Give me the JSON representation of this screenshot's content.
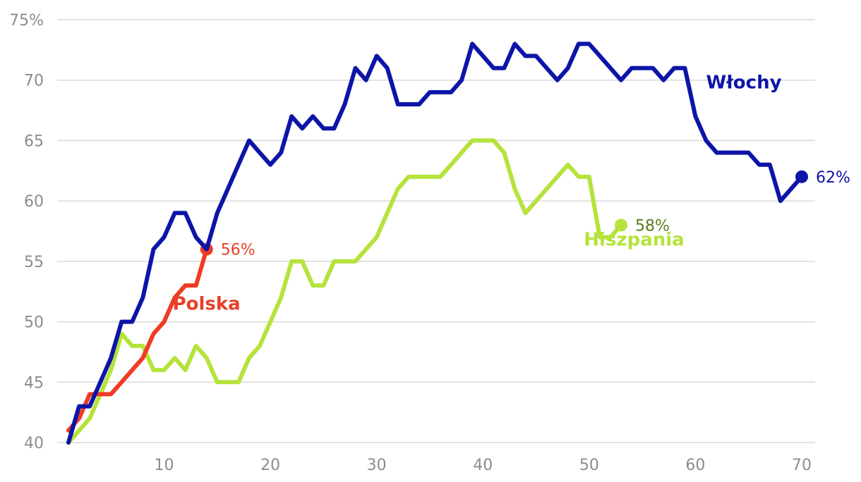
{
  "chart_data": {
    "type": "line",
    "title": "",
    "xlabel": "",
    "ylabel": "",
    "xlim": [
      0,
      72
    ],
    "ylim": [
      40,
      75
    ],
    "x_ticks": [
      {
        "value": 10,
        "label": "10"
      },
      {
        "value": 20,
        "label": "20"
      },
      {
        "value": 30,
        "label": "30"
      },
      {
        "value": 40,
        "label": "40"
      },
      {
        "value": 50,
        "label": "50"
      },
      {
        "value": 60,
        "label": "60"
      },
      {
        "value": 70,
        "label": "70"
      }
    ],
    "y_ticks": [
      {
        "value": 40,
        "label": "40"
      },
      {
        "value": 45,
        "label": "45"
      },
      {
        "value": 50,
        "label": "50"
      },
      {
        "value": 55,
        "label": "55"
      },
      {
        "value": 60,
        "label": "60"
      },
      {
        "value": 65,
        "label": "65"
      },
      {
        "value": 70,
        "label": "70"
      },
      {
        "value": 75,
        "label": "75%"
      }
    ],
    "grid": true,
    "series": [
      {
        "name": "Hiszpania",
        "color": "#b5e33b",
        "label_color": "#b5e33b",
        "end_label": "58%",
        "end_label_color": "#5a7a1a",
        "label_at": [
          49.5,
          56.3
        ],
        "x": [
          1,
          2,
          3,
          4,
          5,
          6,
          7,
          8,
          9,
          10,
          11,
          12,
          13,
          14,
          15,
          16,
          17,
          18,
          19,
          20,
          21,
          22,
          23,
          24,
          25,
          26,
          27,
          28,
          29,
          30,
          31,
          32,
          33,
          34,
          35,
          36,
          37,
          38,
          39,
          40,
          41,
          42,
          43,
          44,
          45,
          46,
          47,
          48,
          49,
          50,
          51,
          52,
          53
        ],
        "values": [
          40,
          41,
          42,
          44,
          46,
          49,
          48,
          48,
          46,
          46,
          47,
          46,
          48,
          47,
          45,
          45,
          45,
          47,
          48,
          50,
          52,
          55,
          55,
          53,
          53,
          55,
          55,
          55,
          56,
          57,
          59,
          61,
          62,
          62,
          62,
          62,
          63,
          64,
          65,
          65,
          65,
          64,
          61,
          59,
          60,
          61,
          62,
          63,
          62,
          62,
          57,
          57,
          58
        ]
      },
      {
        "name": "Polska",
        "color": "#ef3b24",
        "label_color": "#e8402a",
        "end_label": "56%",
        "end_label_color": "#e8402a",
        "label_at": [
          10.8,
          51.0
        ],
        "x": [
          1,
          2,
          3,
          4,
          5,
          6,
          7,
          8,
          9,
          10,
          11,
          12,
          13,
          14
        ],
        "values": [
          41,
          42,
          44,
          44,
          44,
          45,
          46,
          47,
          49,
          50,
          52,
          53,
          53,
          56
        ]
      },
      {
        "name": "Włochy",
        "color": "#0d15a8",
        "label_color": "#0d15a8",
        "end_label": "62%",
        "end_label_color": "#0d15a8",
        "label_at": [
          61.0,
          69.3
        ],
        "x": [
          1,
          2,
          3,
          4,
          5,
          6,
          7,
          8,
          9,
          10,
          11,
          12,
          13,
          14,
          15,
          16,
          17,
          18,
          19,
          20,
          21,
          22,
          23,
          24,
          25,
          26,
          27,
          28,
          29,
          30,
          31,
          32,
          33,
          34,
          35,
          36,
          37,
          38,
          39,
          40,
          41,
          42,
          43,
          44,
          45,
          46,
          47,
          48,
          49,
          50,
          51,
          52,
          53,
          54,
          55,
          56,
          57,
          58,
          59,
          60,
          61,
          62,
          63,
          64,
          65,
          66,
          67,
          68,
          69,
          70
        ],
        "values": [
          40,
          43,
          43,
          45,
          47,
          50,
          50,
          52,
          56,
          57,
          59,
          59,
          57,
          56,
          59,
          61,
          63,
          65,
          64,
          63,
          64,
          67,
          66,
          67,
          66,
          66,
          68,
          71,
          70,
          72,
          71,
          68,
          68,
          68,
          69,
          69,
          69,
          70,
          73,
          72,
          71,
          71,
          73,
          72,
          72,
          71,
          70,
          71,
          73,
          73,
          72,
          71,
          70,
          71,
          71,
          71,
          70,
          71,
          71,
          67,
          65,
          64,
          64,
          64,
          64,
          63,
          63,
          60,
          61,
          62
        ]
      }
    ]
  }
}
